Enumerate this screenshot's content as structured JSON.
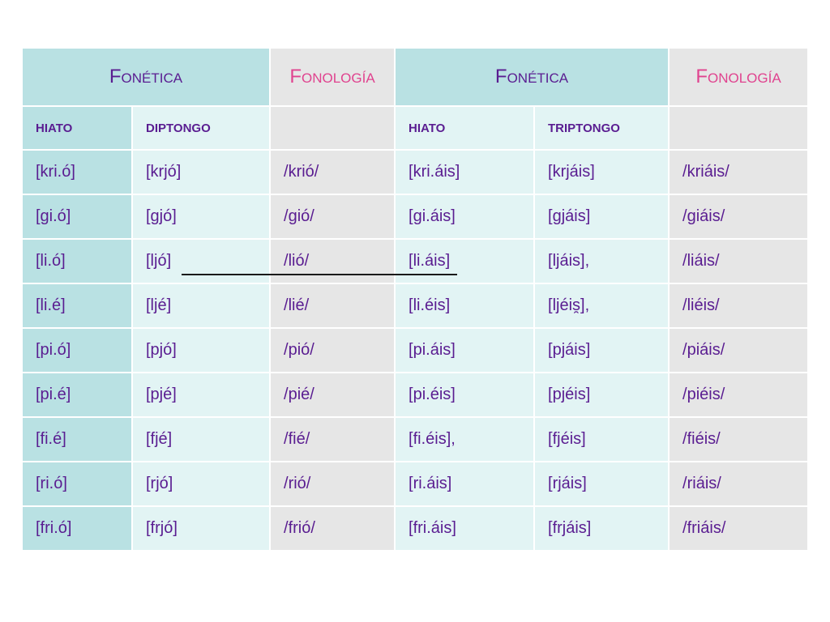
{
  "header": {
    "groups": [
      "Fonética",
      "Fonología",
      "Fonética",
      "Fonología"
    ]
  },
  "subheader": [
    "HIATO",
    "DIPTONGO",
    "",
    "HIATO",
    "TRIPTONGO",
    ""
  ],
  "rows": [
    [
      "[kri.ó]",
      "[krjó]",
      "/krió/",
      "[kri.áis]",
      "[krjáis]",
      "/kriáis/"
    ],
    [
      "[gi.ó]",
      "[gjó]",
      "/gió/",
      "[gi.áis]",
      "[gjáis]",
      "/giáis/"
    ],
    [
      "[li.ó]",
      "[ljó]",
      "/lió/",
      "[li.áis]",
      "[ljáis],",
      "/liáis/"
    ],
    [
      "[li.é]",
      "[ljé]",
      "/lié/",
      "[li.éis]",
      "[ljéis̯],",
      "/liéis/"
    ],
    [
      "[pi.ó]",
      "[pjó]",
      "/pió/",
      "[pi.áis]",
      "[pjáis]",
      "/piáis/"
    ],
    [
      "[pi.é]",
      "[pjé]",
      "/pié/",
      "[pi.éis]",
      "[pjéis]",
      "/piéis/"
    ],
    [
      "[fi.é]",
      "[fjé]",
      "/fié/",
      "[fi.éis],",
      "[fjéis]",
      "/fiéis/"
    ],
    [
      "[ri.ó]",
      "[rjó]",
      "/rió/",
      "[ri.áis]",
      "[rjáis]",
      "/riáis/"
    ],
    [
      "[fri.ó]",
      "[frjó]",
      "/frió/",
      "[fri.áis]",
      "[frjáis]",
      "/friáis/"
    ]
  ]
}
